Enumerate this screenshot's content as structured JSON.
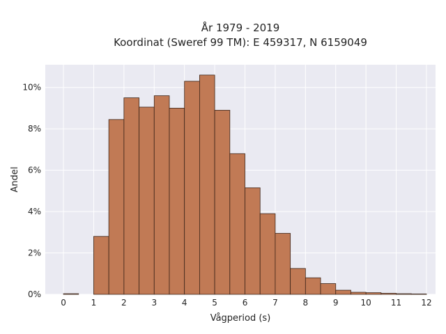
{
  "chart_data": {
    "type": "bar",
    "title": "År 1979 - 2019",
    "subtitle": "Koordinat (Sweref 99 TM): E 459317, N 6159049",
    "xlabel": "Vågperiod (s)",
    "ylabel": "Andel",
    "xlim": [
      -0.6,
      12.3
    ],
    "ylim": [
      0,
      11.1
    ],
    "x_ticks": [
      0,
      1,
      2,
      3,
      4,
      5,
      6,
      7,
      8,
      9,
      10,
      11,
      12
    ],
    "y_ticks": [
      0,
      2,
      4,
      6,
      8,
      10
    ],
    "y_tick_suffix": "%",
    "bin_width": 0.5,
    "bins": [
      {
        "x0": 0.0,
        "value": 0.03
      },
      {
        "x0": 0.5,
        "value": 0.0
      },
      {
        "x0": 1.0,
        "value": 2.8
      },
      {
        "x0": 1.5,
        "value": 8.45
      },
      {
        "x0": 2.0,
        "value": 9.5
      },
      {
        "x0": 2.5,
        "value": 9.05
      },
      {
        "x0": 3.0,
        "value": 9.6
      },
      {
        "x0": 3.5,
        "value": 9.0
      },
      {
        "x0": 4.0,
        "value": 10.3
      },
      {
        "x0": 4.5,
        "value": 10.6
      },
      {
        "x0": 5.0,
        "value": 8.9
      },
      {
        "x0": 5.5,
        "value": 6.8
      },
      {
        "x0": 6.0,
        "value": 5.15
      },
      {
        "x0": 6.5,
        "value": 3.9
      },
      {
        "x0": 7.0,
        "value": 2.95
      },
      {
        "x0": 7.5,
        "value": 1.25
      },
      {
        "x0": 8.0,
        "value": 0.8
      },
      {
        "x0": 8.5,
        "value": 0.52
      },
      {
        "x0": 9.0,
        "value": 0.2
      },
      {
        "x0": 9.5,
        "value": 0.1
      },
      {
        "x0": 10.0,
        "value": 0.08
      },
      {
        "x0": 10.5,
        "value": 0.05
      },
      {
        "x0": 11.0,
        "value": 0.03
      },
      {
        "x0": 11.5,
        "value": 0.02
      }
    ],
    "grid": true,
    "colors": {
      "bar": "#c17a55",
      "bar_edge": "#3b2418",
      "plot_background": "#eaeaf2",
      "grid": "#ffffff"
    }
  }
}
